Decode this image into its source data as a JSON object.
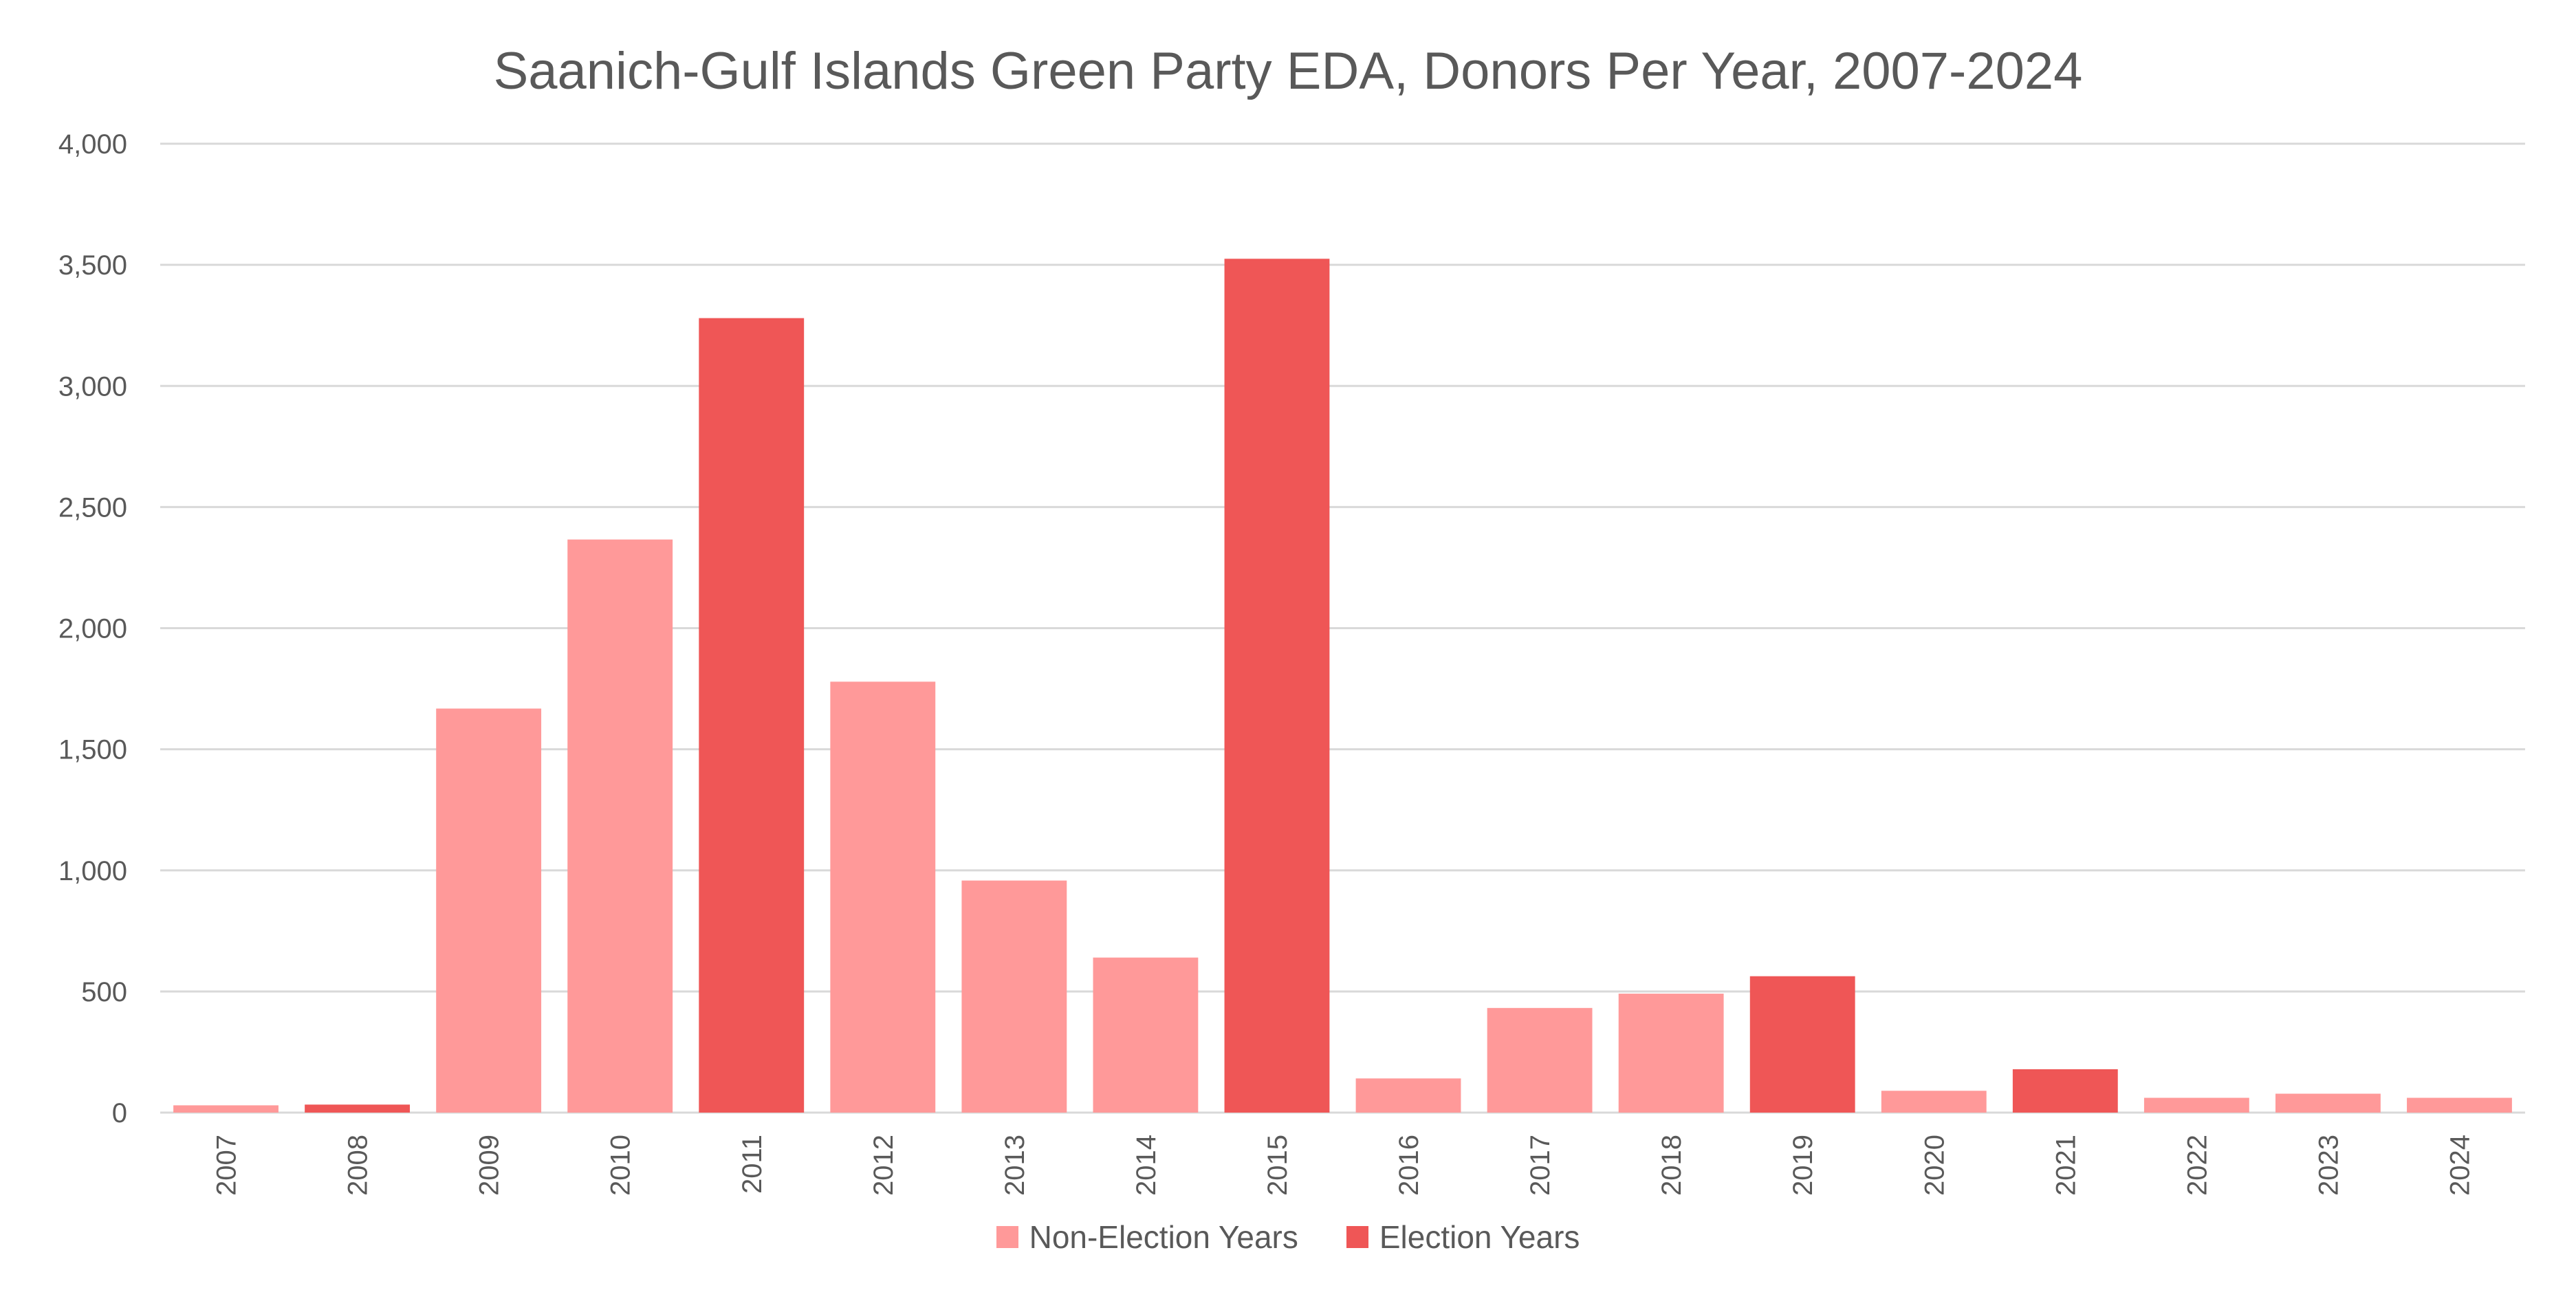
{
  "chart_data": {
    "type": "bar",
    "title": "Saanich-Gulf Islands Green Party EDA, Donors Per Year, 2007-2024",
    "xlabel": "",
    "ylabel": "",
    "ylim": [
      0,
      4000
    ],
    "yticks": [
      0,
      500,
      1000,
      1500,
      2000,
      2500,
      3000,
      3500,
      4000
    ],
    "ytick_labels": [
      "0",
      "500",
      "1,000",
      "1,500",
      "2,000",
      "2,500",
      "3,000",
      "3,500",
      "4,000"
    ],
    "grid": true,
    "legend_position": "bottom",
    "categories": [
      "2007",
      "2008",
      "2009",
      "2010",
      "2011",
      "2012",
      "2013",
      "2014",
      "2015",
      "2016",
      "2017",
      "2018",
      "2019",
      "2020",
      "2021",
      "2022",
      "2023",
      "2024"
    ],
    "values": [
      30,
      33,
      1668,
      2366,
      3280,
      1779,
      958,
      640,
      3525,
      141,
      432,
      491,
      563,
      90,
      179,
      61,
      78,
      61
    ],
    "is_election_year": [
      false,
      true,
      false,
      false,
      true,
      false,
      false,
      false,
      true,
      false,
      false,
      false,
      true,
      false,
      true,
      false,
      false,
      false
    ],
    "series": [
      {
        "name": "Non-Election Years",
        "color": "#FF9999"
      },
      {
        "name": "Election Years",
        "color": "#EF5656"
      }
    ]
  },
  "colors": {
    "gridline": "#D9D9D9",
    "text": "#595959"
  }
}
